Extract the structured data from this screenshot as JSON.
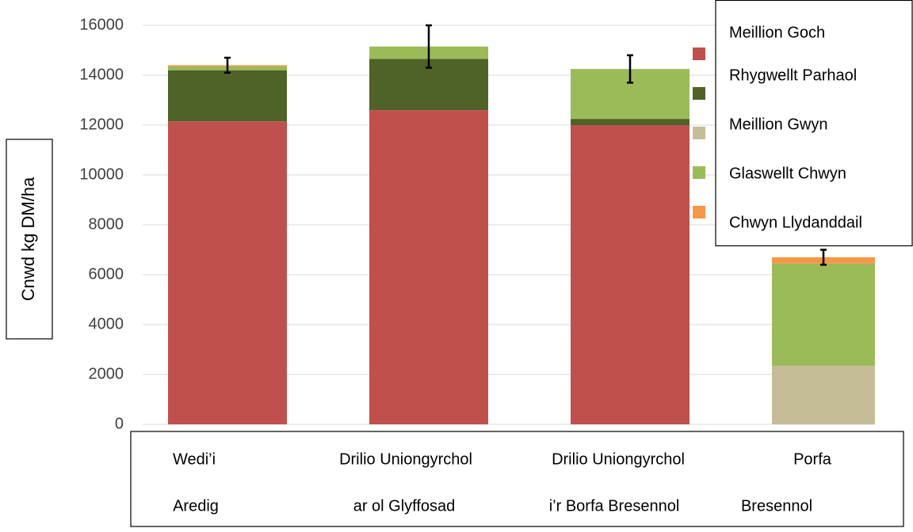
{
  "chart_data": {
    "type": "stacked_bar",
    "ylabel": "Cnwd kg DM/ha",
    "categories": [
      [
        "Wedi’i",
        "Aredig"
      ],
      [
        "Drilio Uniongyrchol",
        "ar ol Glyffosad"
      ],
      [
        "Drilio Uniongyrchol",
        "i’r Borfa Bresennol"
      ],
      [
        "Porfa",
        "Bresennol"
      ]
    ],
    "series": [
      {
        "name": "Meillion Goch",
        "color": "#c0504d",
        "values": [
          12150,
          12600,
          12000,
          0
        ]
      },
      {
        "name": "Rhygwellt Parhaol",
        "color": "#4f6228",
        "values": [
          2050,
          2050,
          250,
          0
        ]
      },
      {
        "name": "Meillion Gwyn",
        "color": "#c4bd97",
        "values": [
          0,
          0,
          0,
          2350
        ]
      },
      {
        "name": "Glaswellt Chwyn",
        "color": "#9bbb59",
        "values": [
          150,
          500,
          2000,
          4100
        ]
      },
      {
        "name": "Chwyn Llydanddail",
        "color": "#f79646",
        "values": [
          50,
          0,
          0,
          250
        ]
      }
    ],
    "errors": [
      300,
      850,
      550,
      300
    ],
    "ylim": [
      0,
      16000
    ],
    "yticks": [
      0,
      2000,
      4000,
      6000,
      8000,
      10000,
      12000,
      14000,
      16000
    ],
    "grid": true
  }
}
